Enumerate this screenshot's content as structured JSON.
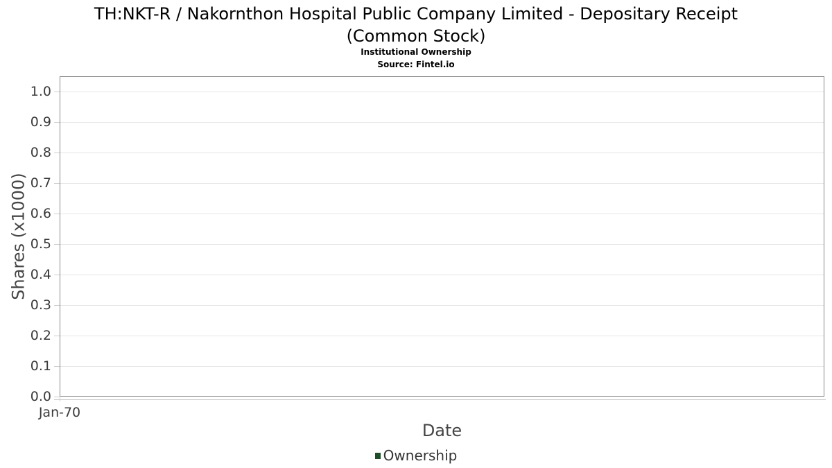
{
  "chart_data": {
    "type": "line",
    "title_line1": "TH:NKT-R / Nakornthon Hospital Public Company Limited - Depositary Receipt",
    "title_line2": "(Common Stock)",
    "subtitle": "Institutional Ownership",
    "source": "Source: Fintel.io",
    "xlabel": "Date",
    "ylabel": "Shares (x1000)",
    "x_tick_labels": [
      "Jan-70"
    ],
    "y_tick_labels": [
      "0.0",
      "0.1",
      "0.2",
      "0.3",
      "0.4",
      "0.5",
      "0.6",
      "0.7",
      "0.8",
      "0.9",
      "1.0"
    ],
    "ylim": [
      0,
      1.05
    ],
    "grid": true,
    "legend_position": "bottom",
    "series": [
      {
        "name": "Ownership",
        "color": "#1e4d2a",
        "x": [],
        "values": []
      }
    ]
  },
  "colors": {
    "plot_border": "#878787",
    "gridline": "#e5e5e5",
    "tick": "#cccccc",
    "x_axis_line": "#c8c8c8",
    "tick_label": "#3a3a3a",
    "axis_title": "#454545",
    "title_text": "#000000",
    "legend_label": "#333333",
    "series_green": "#1e4d2a"
  }
}
